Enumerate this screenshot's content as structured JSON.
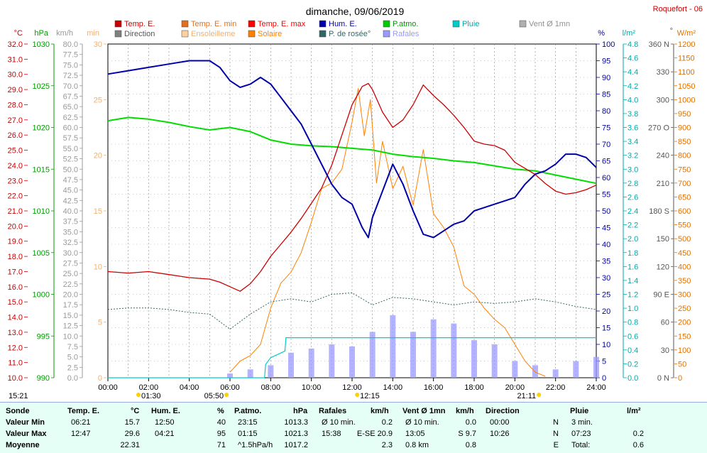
{
  "header": {
    "title": "dimanche, 09/06/2019",
    "station": "Roquefort - 06"
  },
  "legend": [
    {
      "label": "Temp. E.",
      "color": "#cc0000"
    },
    {
      "label": "Temp. E. min",
      "color": "#e07020"
    },
    {
      "label": "Temp. E. max",
      "color": "#ff0000"
    },
    {
      "label": "Hum. E.",
      "color": "#0000aa"
    },
    {
      "label": "P.atmo.",
      "color": "#00cc00"
    },
    {
      "label": "Pluie",
      "color": "#00cccc"
    },
    {
      "label": "Vent Ø 1mn",
      "color": "#b0b0b0"
    },
    {
      "label": "Direction",
      "color": "#808080"
    },
    {
      "label": "Ensoleilleme",
      "color": "#ffd0a0"
    },
    {
      "label": "Solaire",
      "color": "#ff8000"
    },
    {
      "label": "P. de rosée°",
      "color": "#336666"
    },
    {
      "label": "Rafales",
      "color": "#9999ff"
    }
  ],
  "axis_units": {
    "temp": "°C",
    "press": "hPa",
    "wind": "km/h",
    "min": "min",
    "hum": "%",
    "rain": "l/m²",
    "dir": "°",
    "solar": "W/m²"
  },
  "markers": {
    "left_time": "15:21",
    "sunrise": "05:50",
    "solar_noon": "12:15",
    "sunset": "21:11",
    "moon": "01:30"
  },
  "chart_data": {
    "type": "line",
    "title": "dimanche, 09/06/2019",
    "x_ticks": [
      "00:00",
      "02:00",
      "04:00",
      "06:00",
      "08:00",
      "10:00",
      "12:00",
      "14:00",
      "16:00",
      "18:00",
      "20:00",
      "22:00",
      "24:00"
    ],
    "temp_ticks": [
      "10.0",
      "11.0",
      "12.0",
      "13.0",
      "14.0",
      "15.0",
      "16.0",
      "17.0",
      "18.0",
      "19.0",
      "20.0",
      "21.0",
      "22.0",
      "23.0",
      "24.0",
      "25.0",
      "26.0",
      "27.0",
      "28.0",
      "29.0",
      "30.0",
      "31.0",
      "32.0"
    ],
    "press_ticks": [
      "990",
      "995",
      "1000",
      "1005",
      "1010",
      "1015",
      "1020",
      "1025",
      "1030"
    ],
    "wind_ticks": [
      "0.0",
      "2.5",
      "5.0",
      "7.5",
      "10.0",
      "12.5",
      "15.0",
      "17.5",
      "20.0",
      "22.5",
      "25.0",
      "27.5",
      "30.0",
      "32.5",
      "35.0",
      "37.5",
      "40.0",
      "42.5",
      "45.0",
      "47.5",
      "50.0",
      "52.5",
      "55.0",
      "57.5",
      "60.0",
      "62.5",
      "65.0",
      "67.5",
      "70.0",
      "72.5",
      "75.0",
      "77.5",
      "80.0"
    ],
    "min_ticks": [
      "0",
      "5",
      "10",
      "15",
      "20",
      "25",
      "30"
    ],
    "hum_ticks": [
      "0",
      "5",
      "10",
      "15",
      "20",
      "25",
      "30",
      "35",
      "40",
      "45",
      "50",
      "55",
      "60",
      "65",
      "70",
      "75",
      "80",
      "85",
      "90",
      "95",
      "100"
    ],
    "rain_ticks": [
      "0.0",
      "0.2",
      "0.4",
      "0.6",
      "0.8",
      "1.0",
      "1.2",
      "1.4",
      "1.6",
      "1.8",
      "2.0",
      "2.2",
      "2.4",
      "2.6",
      "2.8",
      "3.0",
      "3.2",
      "3.4",
      "3.6",
      "3.8",
      "4.0",
      "4.2",
      "4.4",
      "4.6",
      "4.8"
    ],
    "dir_ticks": [
      "0 N",
      "30",
      "60",
      "90 E",
      "120",
      "150",
      "180 S",
      "210",
      "240",
      "270 O",
      "300",
      "330",
      "360 N"
    ],
    "solar_ticks": [
      "0",
      "50",
      "100",
      "150",
      "200",
      "250",
      "300",
      "350",
      "400",
      "450",
      "500",
      "550",
      "600",
      "650",
      "700",
      "750",
      "800",
      "850",
      "900",
      "950",
      "1000",
      "1050",
      "1100",
      "1150",
      "1200"
    ],
    "series": [
      {
        "name": "Temp. E.",
        "unit": "°C",
        "x": [
          0,
          1,
          2,
          3,
          4,
          5,
          5.5,
          6,
          6.5,
          7,
          7.5,
          8,
          8.5,
          9,
          9.5,
          10,
          10.5,
          11,
          11.5,
          12,
          12.5,
          12.8,
          13,
          13.5,
          14,
          14.5,
          15,
          15.5,
          16,
          16.5,
          17,
          17.5,
          18,
          18.5,
          19,
          19.5,
          20,
          20.5,
          21,
          21.5,
          22,
          22.5,
          23,
          23.5,
          24
        ],
        "values": [
          17.0,
          16.9,
          17.0,
          16.8,
          16.6,
          16.5,
          16.3,
          16.0,
          15.7,
          16.2,
          17.0,
          18.0,
          18.8,
          19.6,
          20.5,
          21.5,
          22.5,
          24.0,
          26.0,
          28.0,
          29.2,
          29.4,
          29.0,
          27.5,
          26.5,
          27.0,
          28.0,
          29.3,
          28.6,
          28.0,
          27.3,
          26.5,
          25.6,
          25.4,
          25.3,
          25.0,
          24.2,
          23.8,
          23.4,
          22.8,
          22.3,
          22.1,
          22.2,
          22.4,
          22.7
        ]
      },
      {
        "name": "Hum. E.",
        "unit": "%",
        "x": [
          0,
          1,
          2,
          3,
          4,
          5,
          5.5,
          6,
          6.5,
          7,
          7.5,
          8,
          8.5,
          9,
          9.5,
          10,
          10.5,
          11,
          11.5,
          12,
          12.5,
          12.8,
          13,
          13.5,
          14,
          14.5,
          15,
          15.5,
          16,
          16.5,
          17,
          17.5,
          18,
          18.5,
          19,
          19.5,
          20,
          20.5,
          21,
          21.5,
          22,
          22.5,
          23,
          23.5,
          24
        ],
        "values": [
          91,
          92,
          93,
          94,
          95,
          95,
          93,
          89,
          87,
          88,
          90,
          88,
          84,
          80,
          76,
          70,
          64,
          58,
          54,
          52,
          45,
          42,
          48,
          56,
          64,
          58,
          50,
          43,
          42,
          44,
          46,
          47,
          50,
          51,
          52,
          53,
          54,
          58,
          61,
          62,
          64,
          67,
          67,
          66,
          63
        ]
      },
      {
        "name": "P.atmo.",
        "unit": "hPa",
        "x": [
          0,
          1,
          2,
          3,
          4,
          5,
          6,
          7,
          8,
          9,
          10,
          11,
          12,
          13,
          14,
          15,
          16,
          17,
          18,
          19,
          20,
          21,
          22,
          23,
          24
        ],
        "values": [
          1020.8,
          1021.2,
          1021.0,
          1020.6,
          1020.1,
          1019.7,
          1020.0,
          1019.5,
          1018.5,
          1018.0,
          1017.8,
          1017.7,
          1017.5,
          1017.3,
          1016.8,
          1016.5,
          1016.3,
          1016.0,
          1015.8,
          1015.4,
          1015.0,
          1014.8,
          1014.3,
          1013.8,
          1013.3
        ]
      },
      {
        "name": "P. de rosée°",
        "unit": "°C",
        "x": [
          0,
          1,
          2,
          3,
          4,
          5,
          6,
          7,
          8,
          9,
          10,
          11,
          12,
          13,
          14,
          15,
          16,
          17,
          18,
          19,
          20,
          21,
          22,
          23,
          24
        ],
        "values": [
          14.5,
          14.6,
          14.6,
          14.5,
          14.3,
          14.2,
          13.2,
          14.2,
          15.0,
          15.2,
          15.0,
          15.5,
          15.6,
          14.8,
          15.3,
          15.2,
          15.0,
          14.8,
          15.0,
          14.9,
          15.0,
          15.2,
          15.0,
          14.7,
          14.5
        ]
      },
      {
        "name": "Solaire",
        "unit": "W/m²",
        "x": [
          6,
          6.5,
          7,
          7.5,
          8,
          8.5,
          9,
          9.5,
          10,
          10.5,
          11,
          11.5,
          12,
          12.3,
          12.6,
          12.9,
          13.2,
          13.5,
          14,
          14.5,
          15,
          15.5,
          16,
          16.5,
          17,
          17.5,
          18,
          18.5,
          19,
          19.5,
          20,
          20.5,
          21,
          21.5
        ],
        "values": [
          20,
          60,
          80,
          120,
          250,
          340,
          380,
          450,
          560,
          680,
          700,
          750,
          920,
          1040,
          870,
          1000,
          700,
          850,
          680,
          760,
          620,
          820,
          590,
          540,
          470,
          330,
          300,
          250,
          210,
          180,
          120,
          60,
          20,
          5
        ]
      },
      {
        "name": "Rafales",
        "unit": "km/h",
        "x": [
          0,
          4,
          6,
          7,
          8,
          9,
          10,
          11,
          12,
          13,
          14,
          15,
          16,
          17,
          18,
          19,
          20,
          21,
          22,
          23,
          24
        ],
        "values": [
          0,
          0,
          1.0,
          2.0,
          3.0,
          6.0,
          7.0,
          8.0,
          7.5,
          11.0,
          15.0,
          11.0,
          14.0,
          13.0,
          9.0,
          8.0,
          4.0,
          3.0,
          2.0,
          4.0,
          5.0
        ]
      },
      {
        "name": "Pluie",
        "unit": "l/m²",
        "x": [
          0,
          6,
          7.7,
          7.75,
          8,
          8.7,
          8.75,
          20,
          24
        ],
        "values": [
          0,
          0,
          0,
          0.2,
          0.3,
          0.4,
          0.6,
          0.6,
          0.6
        ]
      }
    ],
    "ylim_temp": [
      10,
      32
    ],
    "ylim_press": [
      990,
      1030
    ],
    "ylim_hum": [
      0,
      100
    ],
    "xlim": [
      0,
      24
    ],
    "grid": true
  },
  "stats": {
    "headers": {
      "sonde": "Sonde",
      "temp": "Temp. E.",
      "temp_u": "°C",
      "hum": "Hum. E.",
      "hum_u": "%",
      "press": "P.atmo.",
      "press_u": "hPa",
      "gust": "Rafales",
      "gust_u": "km/h",
      "wind": "Vent Ø 1mn",
      "wind_u": "km/h",
      "dir": "Direction",
      "rain": "Pluie",
      "rain_u": "l/m²"
    },
    "rows": [
      {
        "label": "Valeur Min",
        "temp_t": "06:21",
        "temp_v": "15.7",
        "hum_t": "12:50",
        "hum_v": "40",
        "press_t": "23:15",
        "press_v": "1013.3",
        "gust_t": "Ø 10 min.",
        "gust_v": "0.2",
        "wind_t": "Ø 10 min.",
        "wind_v": "0.0",
        "dir_t": "00:00",
        "dir_v": "N",
        "rain_t": "3 min.",
        "rain_v": ""
      },
      {
        "label": "Valeur Max",
        "temp_t": "12:47",
        "temp_v": "29.6",
        "hum_t": "04:21",
        "hum_v": "95",
        "press_t": "01:15",
        "press_v": "1021.3",
        "gust_t": "15:38",
        "gust_v": "E-SE 20.9",
        "wind_t": "13:05",
        "wind_v": "S 9.7",
        "dir_t": "10:26",
        "dir_v": "N",
        "rain_t": "07:23",
        "rain_v": "0.2"
      },
      {
        "label": "Moyenne",
        "temp_t": "",
        "temp_v": "22.31",
        "hum_t": "",
        "hum_v": "71",
        "press_t": "^1.5hPa/h",
        "press_v": "1017.2",
        "gust_t": "",
        "gust_v": "2.3",
        "wind_t": "0.8 km",
        "wind_v": "0.8",
        "dir_t": "",
        "dir_v": "E",
        "rain_t": "Total:",
        "rain_v": "0.6"
      }
    ]
  }
}
